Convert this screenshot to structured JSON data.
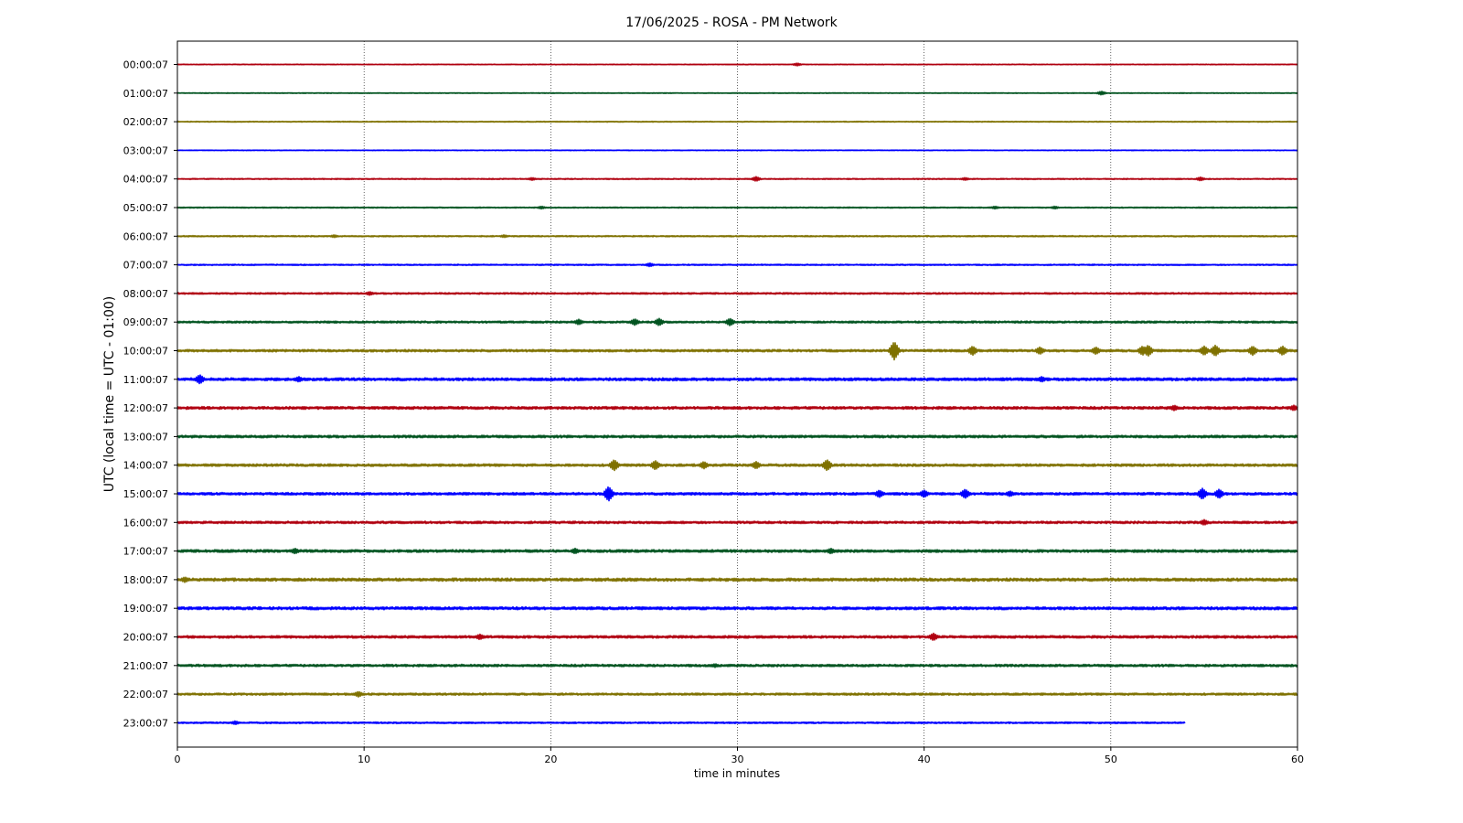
{
  "chart_data": {
    "type": "line",
    "title": "17/06/2025 - ROSA - PM Network",
    "xlabel": "time in minutes",
    "ylabel": "UTC (local time = UTC - 01:00)",
    "xlim": [
      0,
      60
    ],
    "x_ticks": [
      0,
      10,
      20,
      30,
      40,
      50,
      60
    ],
    "grid": "vertical dotted lines at each x tick",
    "series_colors": [
      "#b0000f",
      "#00531f",
      "#7f7100",
      "#0000ff"
    ],
    "rows": [
      {
        "label": "00:00:07",
        "noise": 0.4,
        "end": 60,
        "events": [
          {
            "t": 33.2,
            "amp": 1.5
          }
        ]
      },
      {
        "label": "01:00:07",
        "noise": 0.4,
        "end": 60,
        "events": [
          {
            "t": 49.5,
            "amp": 2
          }
        ]
      },
      {
        "label": "02:00:07",
        "noise": 0.5,
        "end": 60,
        "events": []
      },
      {
        "label": "03:00:07",
        "noise": 0.4,
        "end": 60,
        "events": []
      },
      {
        "label": "04:00:07",
        "noise": 0.6,
        "end": 60,
        "events": [
          {
            "t": 19,
            "amp": 1.5
          },
          {
            "t": 31,
            "amp": 2.5
          },
          {
            "t": 42.2,
            "amp": 1.5
          },
          {
            "t": 54.8,
            "amp": 2
          }
        ]
      },
      {
        "label": "05:00:07",
        "noise": 0.6,
        "end": 60,
        "events": [
          {
            "t": 19.5,
            "amp": 1.5
          },
          {
            "t": 43.8,
            "amp": 1.5
          },
          {
            "t": 47,
            "amp": 1.5
          }
        ]
      },
      {
        "label": "06:00:07",
        "noise": 0.7,
        "end": 60,
        "events": [
          {
            "t": 8.4,
            "amp": 1.5
          },
          {
            "t": 17.5,
            "amp": 1.5
          }
        ]
      },
      {
        "label": "07:00:07",
        "noise": 0.7,
        "end": 60,
        "events": [
          {
            "t": 25.3,
            "amp": 2
          }
        ]
      },
      {
        "label": "08:00:07",
        "noise": 0.9,
        "end": 60,
        "events": [
          {
            "t": 10.3,
            "amp": 2
          }
        ]
      },
      {
        "label": "09:00:07",
        "noise": 1.1,
        "end": 60,
        "events": [
          {
            "t": 21.5,
            "amp": 3
          },
          {
            "t": 24.5,
            "amp": 3.5
          },
          {
            "t": 25.8,
            "amp": 4
          },
          {
            "t": 29.6,
            "amp": 4
          }
        ]
      },
      {
        "label": "10:00:07",
        "noise": 1.3,
        "end": 60,
        "events": [
          {
            "t": 38.4,
            "amp": 10
          },
          {
            "t": 42.6,
            "amp": 5
          },
          {
            "t": 46.2,
            "amp": 4
          },
          {
            "t": 49.2,
            "amp": 4
          },
          {
            "t": 51.7,
            "amp": 5
          },
          {
            "t": 52,
            "amp": 6
          },
          {
            "t": 55,
            "amp": 5
          },
          {
            "t": 55.6,
            "amp": 6
          },
          {
            "t": 57.6,
            "amp": 5
          },
          {
            "t": 59.2,
            "amp": 5
          }
        ]
      },
      {
        "label": "11:00:07",
        "noise": 1.6,
        "end": 60,
        "events": [
          {
            "t": 1.2,
            "amp": 5
          },
          {
            "t": 6.5,
            "amp": 3
          },
          {
            "t": 46.3,
            "amp": 3
          }
        ]
      },
      {
        "label": "12:00:07",
        "noise": 1.5,
        "end": 60,
        "events": [
          {
            "t": 53.4,
            "amp": 3
          },
          {
            "t": 59.8,
            "amp": 3
          }
        ]
      },
      {
        "label": "13:00:07",
        "noise": 1.4,
        "end": 60,
        "events": []
      },
      {
        "label": "14:00:07",
        "noise": 1.4,
        "end": 60,
        "events": [
          {
            "t": 23.4,
            "amp": 6
          },
          {
            "t": 25.6,
            "amp": 5
          },
          {
            "t": 28.2,
            "amp": 4
          },
          {
            "t": 31,
            "amp": 4
          },
          {
            "t": 34.8,
            "amp": 6
          }
        ]
      },
      {
        "label": "15:00:07",
        "noise": 1.4,
        "end": 60,
        "events": [
          {
            "t": 23.1,
            "amp": 8
          },
          {
            "t": 37.6,
            "amp": 4
          },
          {
            "t": 40,
            "amp": 4
          },
          {
            "t": 42.2,
            "amp": 5
          },
          {
            "t": 44.6,
            "amp": 3
          },
          {
            "t": 54.9,
            "amp": 6
          },
          {
            "t": 55.8,
            "amp": 5
          }
        ]
      },
      {
        "label": "16:00:07",
        "noise": 1.3,
        "end": 60,
        "events": [
          {
            "t": 55,
            "amp": 3
          }
        ]
      },
      {
        "label": "17:00:07",
        "noise": 1.5,
        "end": 60,
        "events": [
          {
            "t": 6.3,
            "amp": 3
          },
          {
            "t": 21.3,
            "amp": 3
          },
          {
            "t": 35,
            "amp": 3
          }
        ]
      },
      {
        "label": "18:00:07",
        "noise": 1.7,
        "end": 60,
        "events": [
          {
            "t": 0.4,
            "amp": 3
          }
        ]
      },
      {
        "label": "19:00:07",
        "noise": 1.6,
        "end": 60,
        "events": []
      },
      {
        "label": "20:00:07",
        "noise": 1.4,
        "end": 60,
        "events": [
          {
            "t": 16.2,
            "amp": 3
          },
          {
            "t": 40.5,
            "amp": 4
          }
        ]
      },
      {
        "label": "21:00:07",
        "noise": 1.3,
        "end": 60,
        "events": [
          {
            "t": 28.8,
            "amp": 2
          }
        ]
      },
      {
        "label": "22:00:07",
        "noise": 1.2,
        "end": 60,
        "events": [
          {
            "t": 9.7,
            "amp": 3
          }
        ]
      },
      {
        "label": "23:00:07",
        "noise": 0.9,
        "end": 54,
        "events": [
          {
            "t": 3.1,
            "amp": 2
          }
        ]
      }
    ]
  }
}
